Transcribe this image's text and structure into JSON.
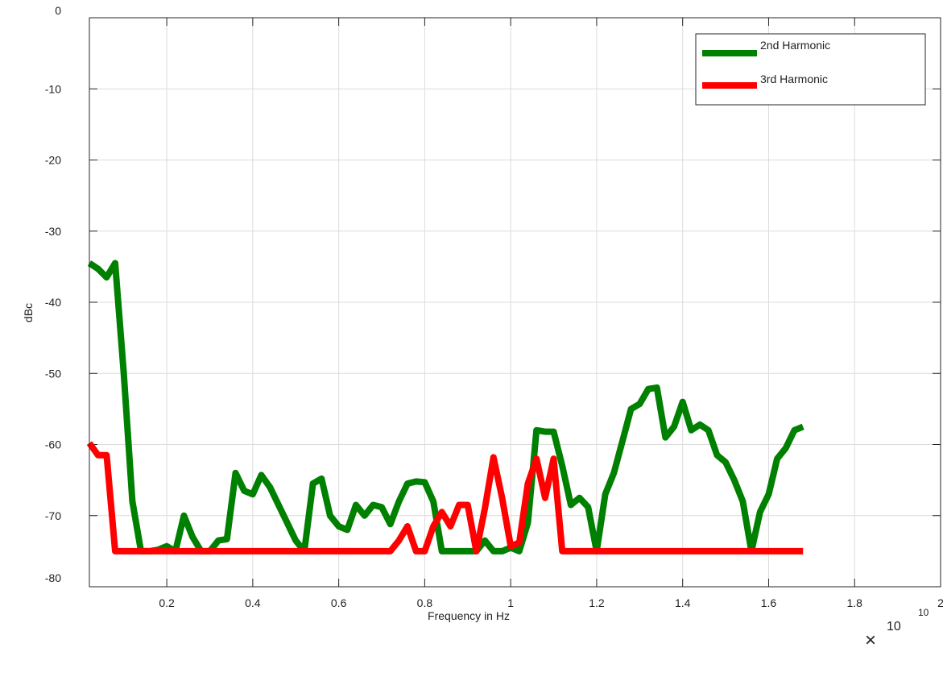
{
  "chart_data": {
    "type": "line",
    "xlabel": "Frequency in Hz",
    "ylabel": "dBc",
    "x_exponent_base": "10",
    "x_exponent_power": "10",
    "xlim": [
      0.02,
      2.0
    ],
    "ylim": [
      -80,
      0
    ],
    "xticks": [
      0.2,
      0.4,
      0.6,
      0.8,
      1,
      1.2,
      1.4,
      1.6,
      1.8,
      2
    ],
    "xtick_labels": [
      "0.2",
      "0.4",
      "0.6",
      "0.8",
      "1",
      "1.2",
      "1.4",
      "1.6",
      "1.8",
      "2"
    ],
    "yticks": [
      0,
      -10,
      -20,
      -30,
      -40,
      -50,
      -60,
      -70,
      -80
    ],
    "ytick_labels": [
      "0",
      "-10",
      "-20",
      "-30",
      "-40",
      "-50",
      "-60",
      "-70",
      "-80"
    ],
    "grid": true,
    "legend_position": "top-right",
    "series": [
      {
        "name": "2nd Harmonic",
        "color": "#008000",
        "points": [
          [
            0.02,
            -34.5
          ],
          [
            0.04,
            -35.3
          ],
          [
            0.06,
            -36.5
          ],
          [
            0.08,
            -34.5
          ],
          [
            0.1,
            -50.0
          ],
          [
            0.12,
            -68.0
          ],
          [
            0.14,
            -75.0
          ],
          [
            0.16,
            -75.0
          ],
          [
            0.18,
            -74.8
          ],
          [
            0.2,
            -74.3
          ],
          [
            0.22,
            -75.0
          ],
          [
            0.24,
            -70.0
          ],
          [
            0.26,
            -73.0
          ],
          [
            0.28,
            -75.0
          ],
          [
            0.3,
            -75.0
          ],
          [
            0.32,
            -73.5
          ],
          [
            0.34,
            -73.3
          ],
          [
            0.36,
            -64.0
          ],
          [
            0.38,
            -66.5
          ],
          [
            0.4,
            -67.0
          ],
          [
            0.42,
            -64.3
          ],
          [
            0.44,
            -66.0
          ],
          [
            0.46,
            -68.5
          ],
          [
            0.48,
            -71.0
          ],
          [
            0.5,
            -73.5
          ],
          [
            0.52,
            -75.0
          ],
          [
            0.54,
            -65.5
          ],
          [
            0.56,
            -64.8
          ],
          [
            0.58,
            -70.0
          ],
          [
            0.6,
            -71.5
          ],
          [
            0.62,
            -72.0
          ],
          [
            0.64,
            -68.5
          ],
          [
            0.66,
            -70.0
          ],
          [
            0.68,
            -68.5
          ],
          [
            0.7,
            -68.8
          ],
          [
            0.72,
            -71.2
          ],
          [
            0.74,
            -68.0
          ],
          [
            0.76,
            -65.5
          ],
          [
            0.78,
            -65.2
          ],
          [
            0.8,
            -65.3
          ],
          [
            0.82,
            -68.0
          ],
          [
            0.84,
            -75.0
          ],
          [
            0.86,
            -75.0
          ],
          [
            0.88,
            -75.0
          ],
          [
            0.9,
            -75.0
          ],
          [
            0.92,
            -75.0
          ],
          [
            0.94,
            -73.5
          ],
          [
            0.96,
            -75.0
          ],
          [
            0.98,
            -75.0
          ],
          [
            1.0,
            -74.5
          ],
          [
            1.02,
            -75.0
          ],
          [
            1.04,
            -71.0
          ],
          [
            1.06,
            -58.0
          ],
          [
            1.08,
            -58.2
          ],
          [
            1.1,
            -58.2
          ],
          [
            1.12,
            -63.0
          ],
          [
            1.14,
            -68.5
          ],
          [
            1.16,
            -67.5
          ],
          [
            1.18,
            -68.8
          ],
          [
            1.2,
            -75.0
          ],
          [
            1.22,
            -67.0
          ],
          [
            1.24,
            -64.0
          ],
          [
            1.26,
            -59.5
          ],
          [
            1.28,
            -55.0
          ],
          [
            1.3,
            -54.3
          ],
          [
            1.32,
            -52.2
          ],
          [
            1.34,
            -52.0
          ],
          [
            1.36,
            -59.0
          ],
          [
            1.38,
            -57.5
          ],
          [
            1.4,
            -54.0
          ],
          [
            1.42,
            -58.0
          ],
          [
            1.44,
            -57.2
          ],
          [
            1.46,
            -58.0
          ],
          [
            1.48,
            -61.5
          ],
          [
            1.5,
            -62.5
          ],
          [
            1.52,
            -65.0
          ],
          [
            1.54,
            -68.0
          ],
          [
            1.56,
            -75.0
          ],
          [
            1.58,
            -69.5
          ],
          [
            1.6,
            -67.0
          ],
          [
            1.62,
            -62.0
          ],
          [
            1.64,
            -60.5
          ],
          [
            1.66,
            -58.0
          ],
          [
            1.68,
            -57.5
          ]
        ]
      },
      {
        "name": "3rd Harmonic",
        "color": "#ff0000",
        "points": [
          [
            0.02,
            -59.8
          ],
          [
            0.04,
            -61.5
          ],
          [
            0.06,
            -61.5
          ],
          [
            0.08,
            -75.0
          ],
          [
            0.1,
            -75.0
          ],
          [
            0.72,
            -75.0
          ],
          [
            0.74,
            -73.5
          ],
          [
            0.76,
            -71.5
          ],
          [
            0.78,
            -75.0
          ],
          [
            0.8,
            -75.0
          ],
          [
            0.82,
            -71.5
          ],
          [
            0.84,
            -69.5
          ],
          [
            0.86,
            -71.5
          ],
          [
            0.88,
            -68.5
          ],
          [
            0.9,
            -68.5
          ],
          [
            0.92,
            -75.0
          ],
          [
            0.94,
            -69.0
          ],
          [
            0.96,
            -61.8
          ],
          [
            0.98,
            -67.5
          ],
          [
            1.0,
            -74.3
          ],
          [
            1.02,
            -73.8
          ],
          [
            1.04,
            -65.5
          ],
          [
            1.06,
            -62.0
          ],
          [
            1.08,
            -67.5
          ],
          [
            1.1,
            -62.0
          ],
          [
            1.12,
            -75.0
          ],
          [
            1.68,
            -75.0
          ]
        ]
      }
    ]
  }
}
